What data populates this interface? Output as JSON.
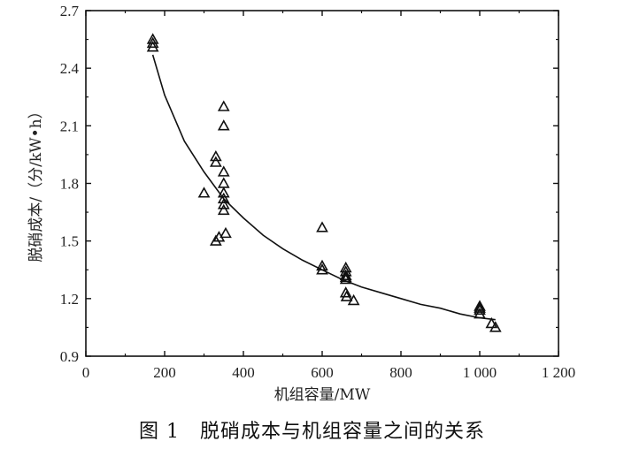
{
  "caption": "图 1　脱硝成本与机组容量之间的关系",
  "chart_data": {
    "type": "scatter",
    "xlabel": "机组容量/MW",
    "ylabel": "脱硝成本/（分/kW•h）",
    "xlim": [
      0,
      1200
    ],
    "ylim": [
      0.9,
      2.7
    ],
    "xticks": [
      0,
      200,
      400,
      600,
      800,
      1000,
      1200
    ],
    "xtick_labels": [
      "0",
      "200",
      "400",
      "600",
      "800",
      "1 000",
      "1 200"
    ],
    "yticks": [
      0.9,
      1.2,
      1.5,
      1.8,
      2.1,
      2.4,
      2.7
    ],
    "ytick_labels": [
      "0.9",
      "1.2",
      "1.5",
      "1.8",
      "2.1",
      "2.4",
      "2.7"
    ],
    "grid": false,
    "marker": "triangle-open",
    "series": [
      {
        "kind": "points",
        "points": [
          [
            170,
            2.55
          ],
          [
            170,
            2.53
          ],
          [
            170,
            2.51
          ],
          [
            300,
            1.75
          ],
          [
            330,
            1.94
          ],
          [
            330,
            1.91
          ],
          [
            330,
            1.5
          ],
          [
            338,
            1.52
          ],
          [
            350,
            2.2
          ],
          [
            350,
            2.1
          ],
          [
            350,
            1.86
          ],
          [
            350,
            1.8
          ],
          [
            350,
            1.75
          ],
          [
            350,
            1.72
          ],
          [
            350,
            1.69
          ],
          [
            350,
            1.66
          ],
          [
            355,
            1.54
          ],
          [
            600,
            1.57
          ],
          [
            600,
            1.37
          ],
          [
            600,
            1.35
          ],
          [
            660,
            1.36
          ],
          [
            660,
            1.34
          ],
          [
            660,
            1.32
          ],
          [
            660,
            1.31
          ],
          [
            660,
            1.3
          ],
          [
            660,
            1.23
          ],
          [
            662,
            1.21
          ],
          [
            680,
            1.19
          ],
          [
            1000,
            1.16
          ],
          [
            1000,
            1.15
          ],
          [
            1000,
            1.14
          ],
          [
            1000,
            1.12
          ],
          [
            1030,
            1.07
          ],
          [
            1040,
            1.05
          ]
        ]
      },
      {
        "kind": "fit-line",
        "x": [
          170,
          200,
          250,
          300,
          350,
          400,
          450,
          500,
          550,
          600,
          650,
          700,
          750,
          800,
          850,
          900,
          950,
          1000,
          1040
        ],
        "y": [
          2.47,
          2.26,
          2.02,
          1.86,
          1.72,
          1.62,
          1.53,
          1.46,
          1.4,
          1.35,
          1.3,
          1.26,
          1.23,
          1.2,
          1.17,
          1.15,
          1.12,
          1.1,
          1.09
        ]
      }
    ]
  }
}
